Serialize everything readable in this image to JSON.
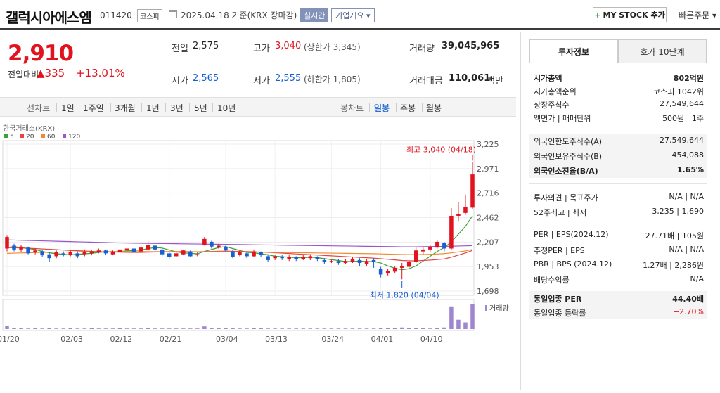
{
  "header": {
    "company": "갤럭시아에스엠",
    "code": "011420",
    "market": "코스피",
    "date": "2025.04.18  기준(KRX 장마감)",
    "realtime": "실시간",
    "overview": "기업개요",
    "mystock": "MY STOCK 추가",
    "quick_order": "빠른주문"
  },
  "price": {
    "now": "2,910",
    "diff_label": "전일대비",
    "diff": "▲335",
    "rate": "+13.01%"
  },
  "quote": {
    "prev_lbl": "전일",
    "prev": "2,575",
    "high_lbl": "고가",
    "high": "3,040",
    "upper": "(상한가 3,345)",
    "volume_lbl": "거래량",
    "volume": "39,045,965",
    "open_lbl": "시가",
    "open": "2,565",
    "low_lbl": "저가",
    "low": "2,555",
    "lower": "(하한가 1,805)",
    "amount_lbl": "거래대금",
    "amount": "110,061",
    "amount_unit": "백만"
  },
  "period_bar": {
    "line_label": "선차트",
    "periods": [
      "1일",
      "1주일",
      "3개월",
      "1년",
      "3년",
      "5년",
      "10년"
    ],
    "candle_label": "봉차트",
    "candles": [
      "일봉",
      "주봉",
      "월봉"
    ],
    "active_candle": "일봉"
  },
  "chart_data": {
    "type": "candlestick",
    "source": "한국거래소(KRX)",
    "legend": [
      "5",
      "20",
      "60",
      "120"
    ],
    "legend_colors": [
      "#3aa13a",
      "#e34444",
      "#f08a2e",
      "#9a57c9"
    ],
    "y_ticks": [
      "3,225",
      "2,971",
      "2,716",
      "2,462",
      "2,207",
      "1,953",
      "1,698"
    ],
    "ylim": [
      1698,
      3225
    ],
    "x_ticks": [
      "01/20",
      "02/03",
      "02/12",
      "02/21",
      "03/04",
      "03/13",
      "03/24",
      "04/01",
      "04/10"
    ],
    "high_label": "최고 3,040 (04/18)",
    "low_label": "최저 1,820 (04/04)",
    "volume_label": "거래량",
    "candles": [
      [
        2140,
        2260,
        2110,
        2280
      ],
      [
        2170,
        2130,
        2110,
        2190
      ],
      [
        2130,
        2160,
        2100,
        2180
      ],
      [
        2150,
        2090,
        2080,
        2160
      ],
      [
        2100,
        2120,
        2080,
        2140
      ],
      [
        2110,
        2070,
        2050,
        2130
      ],
      [
        2080,
        2040,
        2000,
        2100
      ],
      [
        2060,
        2100,
        2040,
        2120
      ],
      [
        2090,
        2080,
        2060,
        2110
      ],
      [
        2070,
        2100,
        2060,
        2120
      ],
      [
        2090,
        2060,
        2040,
        2110
      ],
      [
        2080,
        2100,
        2060,
        2130
      ],
      [
        2090,
        2110,
        2070,
        2120
      ],
      [
        2100,
        2120,
        2090,
        2140
      ],
      [
        2120,
        2090,
        2070,
        2130
      ],
      [
        2080,
        2110,
        2070,
        2120
      ],
      [
        2100,
        2130,
        2090,
        2160
      ],
      [
        2120,
        2140,
        2100,
        2150
      ],
      [
        2140,
        2100,
        2090,
        2150
      ],
      [
        2110,
        2150,
        2100,
        2170
      ],
      [
        2130,
        2180,
        2120,
        2220
      ],
      [
        2170,
        2130,
        2110,
        2180
      ],
      [
        2130,
        2080,
        2060,
        2140
      ],
      [
        2090,
        2050,
        2030,
        2100
      ],
      [
        2060,
        2090,
        2050,
        2100
      ],
      [
        2080,
        2120,
        2070,
        2130
      ],
      [
        2110,
        2060,
        2050,
        2120
      ],
      [
        2070,
        2080,
        2060,
        2100
      ],
      [
        2180,
        2240,
        2170,
        2260
      ],
      [
        2210,
        2160,
        2140,
        2220
      ],
      [
        2150,
        2170,
        2140,
        2190
      ],
      [
        2160,
        2120,
        2100,
        2170
      ],
      [
        2110,
        2050,
        2040,
        2130
      ],
      [
        2070,
        2100,
        2060,
        2120
      ],
      [
        2090,
        2060,
        2040,
        2100
      ],
      [
        2060,
        2110,
        2050,
        2130
      ],
      [
        2100,
        2070,
        2050,
        2110
      ],
      [
        2060,
        2020,
        2000,
        2080
      ],
      [
        2040,
        2060,
        2020,
        2070
      ],
      [
        2050,
        2040,
        2020,
        2070
      ],
      [
        2030,
        2050,
        2010,
        2070
      ],
      [
        2050,
        2030,
        2010,
        2060
      ],
      [
        2030,
        2050,
        2020,
        2070
      ],
      [
        2040,
        2060,
        2020,
        2080
      ],
      [
        2050,
        2030,
        2010,
        2060
      ],
      [
        2020,
        2000,
        1980,
        2040
      ],
      [
        2000,
        2010,
        1990,
        2030
      ],
      [
        2010,
        1990,
        1970,
        2030
      ],
      [
        1990,
        2010,
        1980,
        2030
      ],
      [
        2000,
        2030,
        1990,
        2050
      ],
      [
        2020,
        1990,
        1960,
        2040
      ],
      [
        1980,
        2010,
        1960,
        2030
      ],
      [
        2020,
        2000,
        1940,
        2040
      ],
      [
        1930,
        1870,
        1840,
        1950
      ],
      [
        1880,
        1910,
        1860,
        1930
      ],
      [
        1900,
        1940,
        1880,
        1960
      ],
      [
        1940,
        1960,
        1820,
        1990
      ],
      [
        1950,
        2000,
        1930,
        2020
      ],
      [
        2000,
        2120,
        1990,
        2150
      ],
      [
        2110,
        2130,
        2080,
        2160
      ],
      [
        2130,
        2160,
        2100,
        2180
      ],
      [
        2150,
        2210,
        2140,
        2230
      ],
      [
        2200,
        2140,
        2110,
        2210
      ],
      [
        2140,
        2480,
        2120,
        2560
      ],
      [
        2480,
        2500,
        2420,
        2620
      ],
      [
        2510,
        2575,
        2490,
        2700
      ],
      [
        2565,
        2910,
        2555,
        3040
      ]
    ],
    "ma5": [
      2150,
      2160,
      2150,
      2140,
      2130,
      2110,
      2095,
      2085,
      2080,
      2075,
      2080,
      2085,
      2090,
      2100,
      2105,
      2105,
      2110,
      2115,
      2120,
      2125,
      2140,
      2150,
      2145,
      2125,
      2105,
      2095,
      2090,
      2085,
      2110,
      2130,
      2150,
      2160,
      2140,
      2120,
      2100,
      2095,
      2085,
      2075,
      2060,
      2055,
      2050,
      2045,
      2045,
      2050,
      2045,
      2035,
      2025,
      2015,
      2005,
      2005,
      2010,
      2005,
      2005,
      1990,
      1960,
      1935,
      1920,
      1930,
      1960,
      2010,
      2060,
      2110,
      2150,
      2210,
      2290,
      2370,
      2480
    ],
    "ma20": [
      2150,
      2148,
      2146,
      2143,
      2140,
      2136,
      2132,
      2128,
      2124,
      2120,
      2117,
      2114,
      2111,
      2108,
      2106,
      2104,
      2102,
      2101,
      2100,
      2100,
      2102,
      2104,
      2106,
      2107,
      2108,
      2108,
      2107,
      2106,
      2108,
      2110,
      2112,
      2113,
      2112,
      2110,
      2108,
      2106,
      2103,
      2100,
      2096,
      2092,
      2088,
      2084,
      2080,
      2076,
      2072,
      2068,
      2064,
      2060,
      2056,
      2052,
      2048,
      2044,
      2040,
      2034,
      2028,
      2022,
      2016,
      2012,
      2012,
      2016,
      2020,
      2026,
      2032,
      2050,
      2072,
      2094,
      2120
    ],
    "ma60": [
      2090,
      2092,
      2094,
      2096,
      2098,
      2100,
      2101,
      2102,
      2103,
      2104,
      2105,
      2106,
      2106,
      2107,
      2107,
      2108,
      2108,
      2108,
      2108,
      2108,
      2108,
      2108,
      2108,
      2108,
      2107,
      2107,
      2106,
      2106,
      2106,
      2106,
      2106,
      2106,
      2105,
      2105,
      2104,
      2103,
      2102,
      2101,
      2100,
      2099,
      2098,
      2097,
      2096,
      2095,
      2094,
      2093,
      2092,
      2091,
      2090,
      2089,
      2088,
      2087,
      2086,
      2084,
      2082,
      2080,
      2078,
      2077,
      2077,
      2078,
      2080,
      2083,
      2087,
      2095,
      2105,
      2115,
      2130
    ],
    "ma120": [
      2230,
      2228,
      2226,
      2224,
      2222,
      2220,
      2218,
      2216,
      2214,
      2212,
      2210,
      2208,
      2206,
      2204,
      2202,
      2200,
      2198,
      2197,
      2196,
      2195,
      2194,
      2193,
      2192,
      2191,
      2190,
      2189,
      2188,
      2187,
      2186,
      2185,
      2184,
      2183,
      2182,
      2181,
      2180,
      2179,
      2178,
      2177,
      2176,
      2175,
      2174,
      2173,
      2172,
      2171,
      2170,
      2169,
      2168,
      2167,
      2166,
      2165,
      2164,
      2163,
      2162,
      2161,
      2160,
      2159,
      2158,
      2158,
      2158,
      2159,
      2160,
      2161,
      2162,
      2164,
      2166,
      2168,
      2170
    ],
    "volume": [
      1.2,
      0.4,
      0.3,
      0.2,
      0.3,
      0.2,
      0.3,
      0.2,
      0.2,
      0.3,
      0.2,
      0.2,
      0.3,
      0.2,
      0.2,
      0.2,
      0.3,
      0.2,
      0.2,
      0.2,
      0.3,
      0.2,
      0.2,
      0.2,
      0.2,
      0.2,
      0.2,
      0.2,
      1.0,
      0.5,
      0.4,
      0.3,
      0.3,
      0.2,
      0.2,
      0.3,
      0.3,
      0.2,
      0.2,
      0.2,
      0.2,
      0.2,
      0.2,
      0.2,
      0.2,
      0.2,
      0.2,
      0.2,
      0.2,
      0.2,
      0.2,
      0.2,
      0.2,
      0.4,
      0.3,
      0.3,
      0.6,
      0.3,
      0.4,
      0.3,
      0.2,
      0.3,
      0.6,
      8.5,
      3.5,
      2.5,
      9.5
    ]
  },
  "rpanel": {
    "tab_active": "투자정보",
    "tab_other": "호가 10단계",
    "rows1": [
      {
        "k": "시가총액",
        "v": "802억원",
        "bold": true
      },
      {
        "k": "시가총액순위",
        "v": "코스피 1042위"
      },
      {
        "k": "상장주식수",
        "v": "27,549,644"
      },
      {
        "k": "액면가 | 매매단위",
        "v": "500원 | 1주"
      }
    ],
    "rows2": [
      {
        "k": "외국인한도주식수(A)",
        "v": "27,549,644"
      },
      {
        "k": "외국인보유주식수(B)",
        "v": "454,088"
      },
      {
        "k": "외국인소진율(B/A)",
        "v": "1.65%",
        "bold": true
      }
    ],
    "rows3": [
      {
        "k": "투자의견 | 목표주가",
        "v": "N/A | N/A"
      },
      {
        "k": "52주최고 | 최저",
        "v": "3,235 | 1,690"
      }
    ],
    "rows4": [
      {
        "k": "PER | EPS(2024.12)",
        "v": "27.71배 | 105원"
      },
      {
        "k": "추정PER | EPS",
        "v": "N/A | N/A"
      },
      {
        "k": "PBR | BPS (2024.12)",
        "v": "1.27배 | 2,286원"
      },
      {
        "k": "배당수익률",
        "v": "N/A"
      }
    ],
    "rows5": [
      {
        "k": "동일업종 PER",
        "v": "44.40배",
        "bold": true
      },
      {
        "k": "동일업종 등락률",
        "v": "+2.70%",
        "red": true
      }
    ]
  }
}
